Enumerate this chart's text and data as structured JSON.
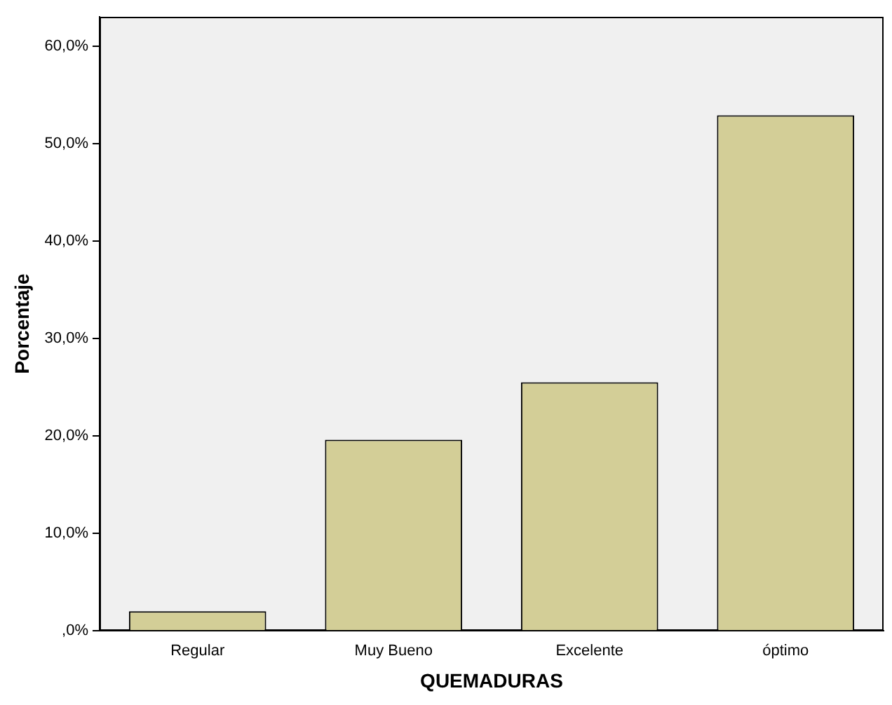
{
  "chart_data": {
    "type": "bar",
    "xlabel": "QUEMADURAS",
    "ylabel": "Porcentaje",
    "categories": [
      "Regular",
      "Muy Bueno",
      "Excelente",
      "óptimo"
    ],
    "values": [
      2.0,
      19.6,
      25.5,
      52.9
    ],
    "color": "#d3ce97",
    "ylim": [
      0,
      63
    ],
    "yticks": [
      {
        "value": 0,
        "label": ",0%"
      },
      {
        "value": 10,
        "label": "10,0%"
      },
      {
        "value": 20,
        "label": "20,0%"
      },
      {
        "value": 30,
        "label": "30,0%"
      },
      {
        "value": 40,
        "label": "40,0%"
      },
      {
        "value": 50,
        "label": "50,0%"
      },
      {
        "value": 60,
        "label": "60,0%"
      }
    ],
    "grid": false,
    "legend": false
  }
}
